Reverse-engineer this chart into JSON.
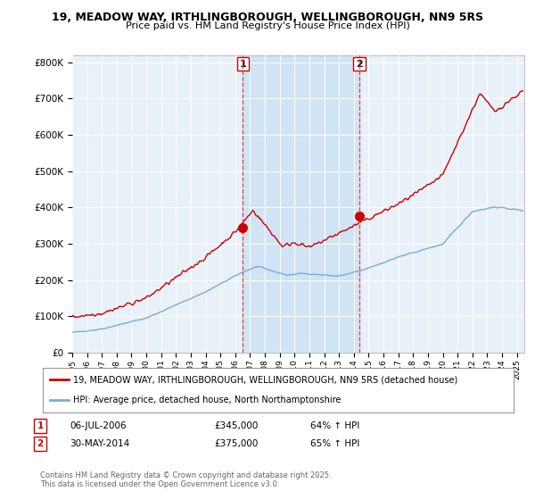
{
  "title_line1": "19, MEADOW WAY, IRTHLINGBOROUGH, WELLINGBOROUGH, NN9 5RS",
  "title_line2": "Price paid vs. HM Land Registry's House Price Index (HPI)",
  "bg_color": "#ffffff",
  "plot_bg": "#e8f0f8",
  "shade_between_color": "#d0e4f5",
  "transaction1": {
    "date": "06-JUL-2006",
    "price": 345000,
    "hpi_pct": "64% ↑ HPI",
    "label": "1"
  },
  "transaction2": {
    "date": "30-MAY-2014",
    "price": 375000,
    "hpi_pct": "65% ↑ HPI",
    "label": "2"
  },
  "legend_line1": "19, MEADOW WAY, IRTHLINGBOROUGH, WELLINGBOROUGH, NN9 5RS (detached house)",
  "legend_line2": "HPI: Average price, detached house, North Northamptonshire",
  "footer": "Contains HM Land Registry data © Crown copyright and database right 2025.\nThis data is licensed under the Open Government Licence v3.0.",
  "vline1_x": 2006.5,
  "vline2_x": 2014.37,
  "marker1_x": 2006.5,
  "marker1_y": 345000,
  "marker2_x": 2014.37,
  "marker2_y": 375000,
  "ylim": [
    0,
    820000
  ],
  "xlim_start": 1995,
  "xlim_end": 2025.5,
  "red_color": "#cc0000",
  "blue_color": "#7aadcf"
}
